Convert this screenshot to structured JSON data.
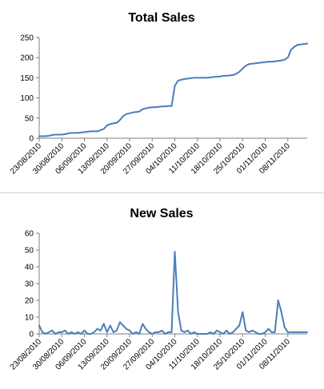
{
  "chart_data": [
    {
      "type": "line",
      "title": "Total Sales",
      "xlabel": "",
      "ylabel": "",
      "ylim": [
        0,
        250
      ],
      "yticks": [
        0,
        50,
        100,
        150,
        200,
        250
      ],
      "x": [
        "23/08/2010",
        "24/08/2010",
        "25/08/2010",
        "26/08/2010",
        "27/08/2010",
        "28/08/2010",
        "29/08/2010",
        "30/08/2010",
        "31/08/2010",
        "01/09/2010",
        "02/09/2010",
        "03/09/2010",
        "04/09/2010",
        "05/09/2010",
        "06/09/2010",
        "07/09/2010",
        "08/09/2010",
        "09/09/2010",
        "10/09/2010",
        "11/09/2010",
        "12/09/2010",
        "13/09/2010",
        "14/09/2010",
        "15/09/2010",
        "16/09/2010",
        "17/09/2010",
        "18/09/2010",
        "19/09/2010",
        "20/09/2010",
        "21/09/2010",
        "22/09/2010",
        "23/09/2010",
        "24/09/2010",
        "25/09/2010",
        "26/09/2010",
        "27/09/2010",
        "28/09/2010",
        "29/09/2010",
        "30/09/2010",
        "01/10/2010",
        "02/10/2010",
        "03/10/2010",
        "04/10/2010",
        "05/10/2010",
        "06/10/2010",
        "07/10/2010",
        "08/10/2010",
        "09/10/2010",
        "10/10/2010",
        "11/10/2010",
        "12/10/2010",
        "13/10/2010",
        "14/10/2010",
        "15/10/2010",
        "16/10/2010",
        "17/10/2010",
        "18/10/2010",
        "19/10/2010",
        "20/10/2010",
        "21/10/2010",
        "22/10/2010",
        "23/10/2010",
        "24/10/2010",
        "25/10/2010",
        "26/10/2010",
        "27/10/2010",
        "28/10/2010",
        "29/10/2010",
        "30/10/2010",
        "31/10/2010",
        "01/11/2010",
        "02/11/2010",
        "03/11/2010",
        "04/11/2010",
        "05/11/2010",
        "06/11/2010",
        "07/11/2010",
        "08/11/2010",
        "09/11/2010",
        "10/11/2010",
        "11/11/2010",
        "12/11/2010",
        "13/11/2010",
        "14/11/2010"
      ],
      "xtick_labels": [
        "23/08/2010",
        "30/08/2010",
        "06/09/2010",
        "13/09/2010",
        "20/09/2010",
        "27/09/2010",
        "04/10/2010",
        "11/10/2010",
        "18/10/2010",
        "25/10/2010",
        "01/11/2010",
        "08/11/2010"
      ],
      "series": [
        {
          "values": [
            5,
            5,
            5,
            6,
            8,
            9,
            9,
            9,
            10,
            12,
            13,
            13,
            13,
            14,
            15,
            16,
            17,
            17,
            17,
            20,
            23,
            32,
            35,
            37,
            38,
            45,
            55,
            60,
            62,
            64,
            65,
            66,
            72,
            74,
            76,
            77,
            77,
            78,
            79,
            79,
            80,
            80,
            130,
            143,
            145,
            147,
            148,
            149,
            150,
            150,
            150,
            150,
            150,
            151,
            152,
            153,
            153,
            155,
            155,
            156,
            157,
            160,
            165,
            173,
            180,
            184,
            185,
            186,
            187,
            188,
            189,
            190,
            190,
            191,
            192,
            193,
            195,
            200,
            220,
            227,
            232,
            233,
            234,
            235
          ]
        }
      ],
      "color": "#4a7ebb"
    },
    {
      "type": "line",
      "title": "New Sales",
      "xlabel": "",
      "ylabel": "",
      "ylim": [
        0,
        60
      ],
      "yticks": [
        0,
        10,
        20,
        30,
        40,
        50,
        60
      ],
      "x": [
        "23/08/2010",
        "24/08/2010",
        "25/08/2010",
        "26/08/2010",
        "27/08/2010",
        "28/08/2010",
        "29/08/2010",
        "30/08/2010",
        "31/08/2010",
        "01/09/2010",
        "02/09/2010",
        "03/09/2010",
        "04/09/2010",
        "05/09/2010",
        "06/09/2010",
        "07/09/2010",
        "08/09/2010",
        "09/09/2010",
        "10/09/2010",
        "11/09/2010",
        "12/09/2010",
        "13/09/2010",
        "14/09/2010",
        "15/09/2010",
        "16/09/2010",
        "17/09/2010",
        "18/09/2010",
        "19/09/2010",
        "20/09/2010",
        "21/09/2010",
        "22/09/2010",
        "23/09/2010",
        "24/09/2010",
        "25/09/2010",
        "26/09/2010",
        "27/09/2010",
        "28/09/2010",
        "29/09/2010",
        "30/09/2010",
        "01/10/2010",
        "02/10/2010",
        "03/10/2010",
        "04/10/2010",
        "05/10/2010",
        "06/10/2010",
        "07/10/2010",
        "08/10/2010",
        "09/10/2010",
        "10/10/2010",
        "11/10/2010",
        "12/10/2010",
        "13/10/2010",
        "14/10/2010",
        "15/10/2010",
        "16/10/2010",
        "17/10/2010",
        "18/10/2010",
        "19/10/2010",
        "20/10/2010",
        "21/10/2010",
        "22/10/2010",
        "23/10/2010",
        "24/10/2010",
        "25/10/2010",
        "26/10/2010",
        "27/10/2010",
        "28/10/2010",
        "29/10/2010",
        "30/10/2010",
        "31/10/2010",
        "01/11/2010",
        "02/11/2010",
        "03/11/2010",
        "04/11/2010",
        "05/11/2010",
        "06/11/2010",
        "07/11/2010",
        "08/11/2010",
        "09/11/2010",
        "10/11/2010",
        "11/11/2010",
        "12/11/2010",
        "13/11/2010",
        "14/11/2010"
      ],
      "xtick_labels": [
        "23/08/2010",
        "30/08/2010",
        "06/09/2010",
        "13/09/2010",
        "20/09/2010",
        "27/09/2010",
        "04/10/2010",
        "11/10/2010",
        "18/10/2010",
        "25/10/2010",
        "01/11/2010",
        "08/11/2010"
      ],
      "series": [
        {
          "values": [
            5,
            1,
            0,
            1,
            2,
            0,
            1,
            1,
            2,
            0,
            1,
            0,
            1,
            0,
            2,
            0,
            0,
            1,
            3,
            2,
            6,
            1,
            5,
            1,
            2,
            7,
            5,
            3,
            2,
            0,
            1,
            0,
            6,
            3,
            1,
            0,
            1,
            1,
            2,
            0,
            1,
            1,
            49,
            13,
            2,
            1,
            2,
            0,
            1,
            0,
            0,
            0,
            0,
            1,
            0,
            2,
            1,
            0,
            2,
            0,
            1,
            3,
            5,
            13,
            2,
            1,
            2,
            1,
            0,
            0,
            1,
            3,
            1,
            1,
            20,
            13,
            4,
            1,
            1,
            1,
            1,
            1,
            1,
            1
          ]
        }
      ],
      "color": "#4a7ebb"
    }
  ]
}
